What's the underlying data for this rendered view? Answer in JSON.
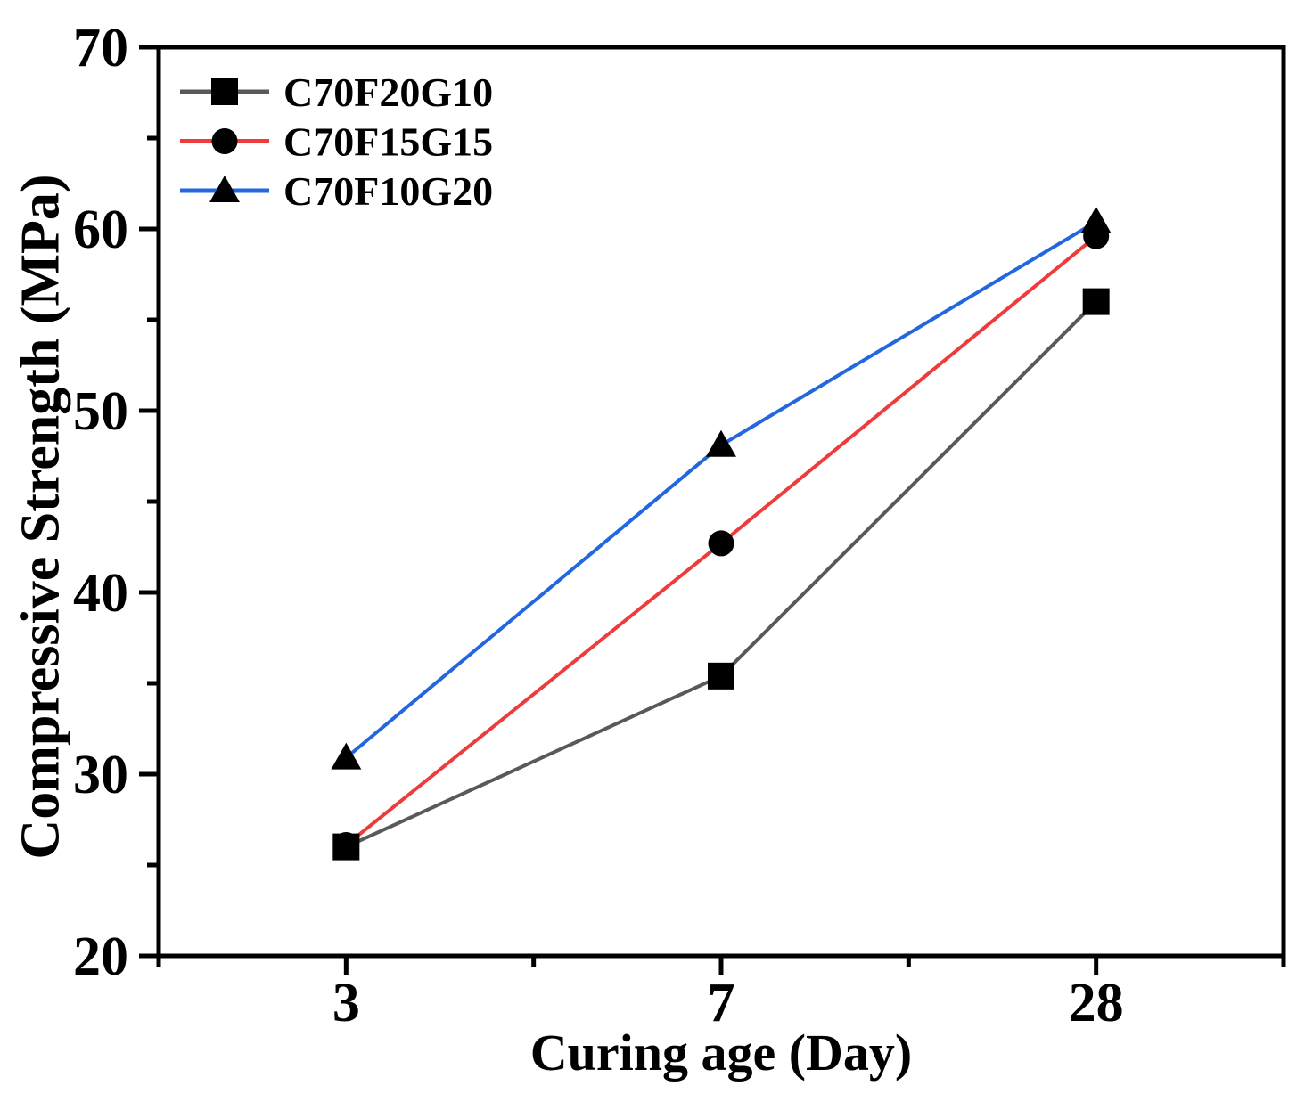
{
  "chart_data": {
    "type": "line",
    "title": "",
    "xlabel": "Curing age (Day)",
    "ylabel": "Compressive Strength (MPa)",
    "categories": [
      "3",
      "7",
      "28"
    ],
    "series": [
      {
        "name": "C70F20G10",
        "marker": "square",
        "line_color": "#595959",
        "marker_color": "#000000",
        "values": [
          26.0,
          35.4,
          56.0
        ]
      },
      {
        "name": "C70F15G15",
        "marker": "circle",
        "line_color": "#ee3b3b",
        "marker_color": "#000000",
        "values": [
          26.1,
          42.7,
          59.6
        ]
      },
      {
        "name": "C70F10G20",
        "marker": "triangle",
        "line_color": "#2267df",
        "marker_color": "#000000",
        "values": [
          30.9,
          48.1,
          60.4
        ]
      }
    ],
    "ylim": [
      20,
      70
    ],
    "y_major_step": 10,
    "y_minor_step": 5,
    "x_minor_ticks_between_categories": true,
    "x_axis_end_ticks": true,
    "legend_position": "top-left",
    "grid": false,
    "axis_color": "#000000",
    "text_color": "#000000",
    "background": "#ffffff"
  }
}
